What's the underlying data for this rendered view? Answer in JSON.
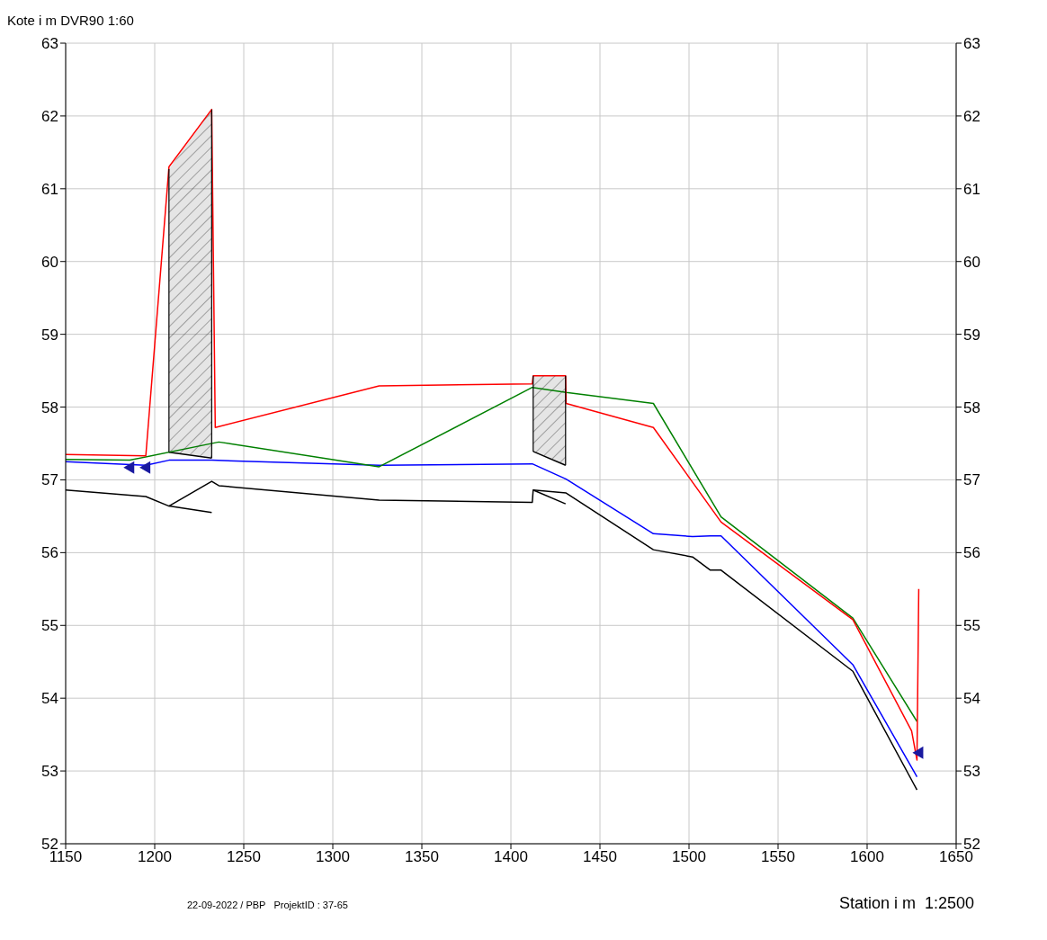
{
  "chart_data": {
    "type": "line",
    "ylabel": "Kote i m DVR90 1:60",
    "xlabel": "Station i m  1:2500",
    "annotations": [
      "22-09-2022 / PBP   ProjektID : 37-65"
    ],
    "xlim": [
      1150,
      1650
    ],
    "xticks": [
      1150,
      1200,
      1250,
      1300,
      1350,
      1400,
      1450,
      1500,
      1550,
      1600,
      1650
    ],
    "ylim": [
      52,
      63
    ],
    "yticks": [
      52,
      53,
      54,
      55,
      56,
      57,
      58,
      59,
      60,
      61,
      62,
      63
    ],
    "y2lim": [
      52,
      63
    ],
    "y2ticks": [
      52,
      53,
      54,
      55,
      56,
      57,
      58,
      59,
      60,
      61,
      62,
      63
    ],
    "grid": true,
    "marker": "none",
    "line_style": "solid",
    "series": [
      {
        "color": "#000000",
        "x": [
          1208,
          1232
        ],
        "values": [
          57.38,
          57.3
        ],
        "lower": [
          57.38,
          57.3
        ],
        "upper": [
          61.27,
          62.09
        ]
      },
      {
        "color": "#000000",
        "x": [
          1412.5,
          1430.7
        ],
        "values": [
          57.39,
          57.2
        ],
        "lower": [
          57.39,
          57.2
        ],
        "upper": [
          58.43,
          58.43
        ]
      },
      {
        "color": "#000000",
        "x": [
          1208,
          1232
        ],
        "values": [
          56.64,
          56.55
        ]
      },
      {
        "color": "#000000",
        "x": [
          1412.5,
          1430.7
        ],
        "values": [
          56.86,
          56.67
        ]
      },
      {
        "color": "#000000",
        "x": [
          1150,
          1195,
          1208,
          1232,
          1236,
          1326,
          1412,
          1412.5,
          1431,
          1480,
          1502,
          1512,
          1518,
          1592,
          1628
        ],
        "values": [
          56.86,
          56.77,
          56.64,
          56.98,
          56.92,
          56.72,
          56.69,
          56.86,
          56.82,
          56.04,
          55.94,
          55.76,
          55.76,
          54.37,
          52.74
        ]
      },
      {
        "color": "#0000ff",
        "x": [
          1150,
          1195,
          1208,
          1232,
          1326,
          1412,
          1431,
          1480,
          1502,
          1512,
          1518,
          1592,
          1628
        ],
        "values": [
          57.25,
          57.2,
          57.27,
          57.27,
          57.2,
          57.22,
          57.01,
          56.26,
          56.22,
          56.23,
          56.23,
          54.46,
          52.92
        ]
      },
      {
        "color": "#008000",
        "x": [
          1150,
          1186,
          1236,
          1326,
          1412,
          1431,
          1480,
          1518,
          1592,
          1628
        ],
        "values": [
          57.28,
          57.27,
          57.52,
          57.18,
          58.27,
          58.2,
          58.05,
          56.49,
          55.1,
          53.68
        ]
      },
      {
        "type": "scatter",
        "marker": "triangle",
        "color": "#1a1aa0",
        "x": [
          1186,
          1195,
          1629
        ],
        "values": [
          57.17,
          57.17,
          53.25
        ]
      },
      {
        "color": "#ff0000",
        "x": [
          1150,
          1195,
          1208,
          1232,
          1234,
          1326,
          1412,
          1412.5,
          1430.7,
          1431,
          1480,
          1518,
          1592,
          1625,
          1628,
          1629
        ],
        "values": [
          57.35,
          57.33,
          61.3,
          62.09,
          57.72,
          58.29,
          58.32,
          58.43,
          58.43,
          58.05,
          57.72,
          56.42,
          55.08,
          53.55,
          53.15,
          55.5
        ]
      }
    ]
  }
}
